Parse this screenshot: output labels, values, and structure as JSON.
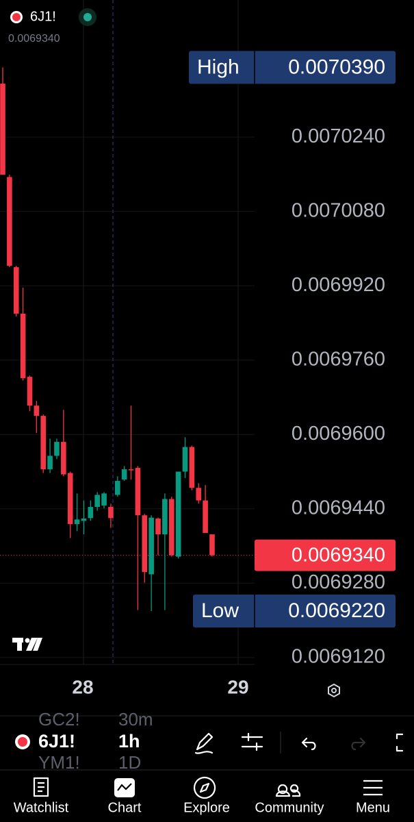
{
  "header": {
    "symbol": "6J1!",
    "price": "0.0069340"
  },
  "chart_data": {
    "type": "candlestick",
    "open": [
      0.0070355,
      0.0070154,
      0.006996,
      0.006986,
      0.0069724,
      0.0069662,
      0.006964,
      0.0069525,
      0.0069554,
      0.0069584,
      0.0069517,
      0.0069407,
      0.0069414,
      0.006942,
      0.0069444,
      0.0069447,
      0.0069444,
      0.006947,
      0.0069503,
      0.0069525,
      0.0069528,
      0.0069426,
      0.0069299,
      0.0069419,
      0.0069385,
      0.0069461,
      0.0069337,
      0.006952,
      0.0069573,
      0.0069485,
      0.0069458,
      0.0069385
    ],
    "high": [
      0.007039,
      0.0070159,
      0.0069963,
      0.0069916,
      0.0069727,
      0.0069672,
      0.0069643,
      0.0069591,
      0.0069591,
      0.0069653,
      0.006952,
      0.0069473,
      0.0069458,
      0.0069458,
      0.0069476,
      0.0069476,
      0.0069451,
      0.006951,
      0.0069532,
      0.0069662,
      0.0069532,
      0.0069429,
      0.0069426,
      0.0069421,
      0.0069473,
      0.0069466,
      0.006952,
      0.0069594,
      0.0069576,
      0.0069495,
      0.0069491,
      0.0069385
    ],
    "low": [
      0.0070159,
      0.006996,
      0.0069854,
      0.0069716,
      0.006965,
      0.0069603,
      0.0069517,
      0.0069517,
      0.0069547,
      0.006951,
      0.0069377,
      0.0069392,
      0.0069385,
      0.0069414,
      0.0069436,
      0.0069441,
      0.0069399,
      0.0069466,
      0.00695,
      0.0069503,
      0.0069222,
      0.0069281,
      0.006922,
      0.006934,
      0.0069222,
      0.0069337,
      0.0069333,
      0.0069506,
      0.006948,
      0.0069451,
      0.0069388,
      0.0069337
    ],
    "close": [
      0.0070159,
      0.0069963,
      0.006986,
      0.0069721,
      0.0069662,
      0.006964,
      0.0069525,
      0.0069554,
      0.0069584,
      0.0069514,
      0.0069407,
      0.0069417,
      0.0069419,
      0.0069444,
      0.006947,
      0.0069473,
      0.006942,
      0.00695,
      0.0069525,
      0.0069523,
      0.0069426,
      0.0069304,
      0.0069421,
      0.0069385,
      0.0069461,
      0.006934,
      0.006952,
      0.0069573,
      0.0069485,
      0.0069458,
      0.0069388,
      0.006934
    ],
    "up_color": "#089981",
    "down_color": "#f23645",
    "ylim": [
      0.0069105,
      0.0070535
    ],
    "yticks": [
      {
        "value": 0.007024,
        "label": "0.0070240"
      },
      {
        "value": 0.007008,
        "label": "0.0070080"
      },
      {
        "value": 0.006992,
        "label": "0.0069920"
      },
      {
        "value": 0.006976,
        "label": "0.0069760"
      },
      {
        "value": 0.00696,
        "label": "0.0069600"
      },
      {
        "value": 0.006944,
        "label": "0.0069440"
      },
      {
        "value": 0.006928,
        "label": "0.0069280"
      },
      {
        "value": 0.006912,
        "label": "0.0069120"
      }
    ],
    "x_labels": [
      "28",
      "29"
    ],
    "high_badge": {
      "name": "High",
      "value": 0.007039,
      "label": "0.0070390"
    },
    "low_badge": {
      "name": "Low",
      "value": 0.006922,
      "label": "0.0069220"
    },
    "last_price": {
      "value": 0.006934,
      "label": "0.0069340"
    }
  },
  "toolbar": {
    "symbol": "6J1!",
    "interval": "1h",
    "prev_symbol": "GC2!",
    "next_symbol": "YM1!",
    "prev_interval": "30m",
    "next_interval": "1D"
  },
  "nav": [
    "Watchlist",
    "Chart",
    "Explore",
    "Community",
    "Menu"
  ]
}
